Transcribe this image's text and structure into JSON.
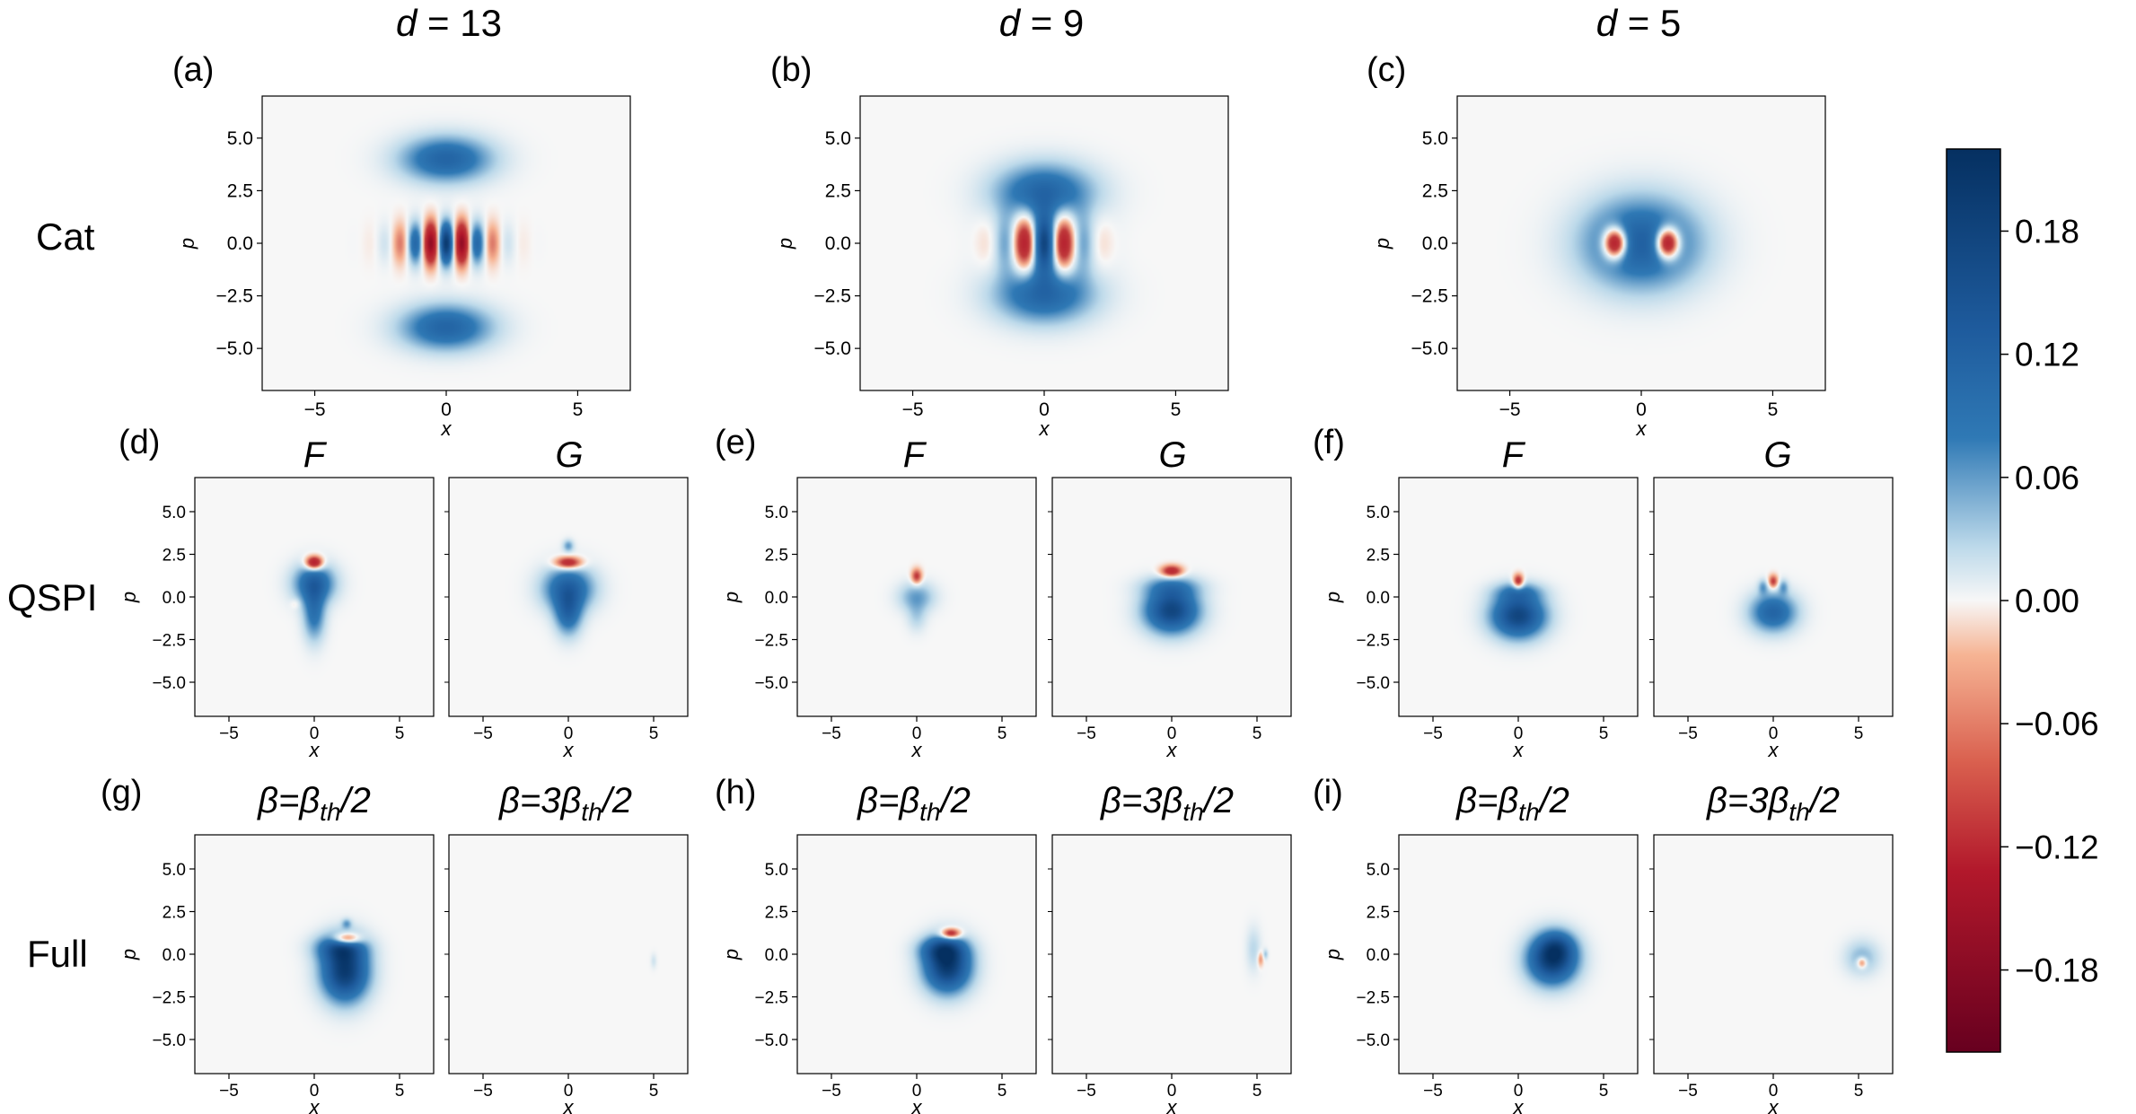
{
  "chart_data": {
    "type": "heatmap",
    "description_free": true,
    "column_titles": [
      {
        "var": "d",
        "eq": " = 13"
      },
      {
        "var": "d",
        "eq": " = 9"
      },
      {
        "var": "d",
        "eq": " = 5"
      }
    ],
    "row_labels": [
      "Cat",
      "QSPI",
      "Full"
    ],
    "panel_labels": [
      "(a)",
      "(b)",
      "(c)",
      "(d)",
      "(e)",
      "(f)",
      "(g)",
      "(h)",
      "(i)"
    ],
    "qspi_subtitles": [
      "F",
      "G"
    ],
    "full_subtitles": [
      {
        "pre": "β=β",
        "sub": "th",
        "post": "/2"
      },
      {
        "pre": "β=3β",
        "sub": "th",
        "post": "/2"
      }
    ],
    "xlabel": "x",
    "ylabel": "p",
    "x_ticks": [
      -5,
      0,
      5
    ],
    "x_tick_labels": [
      "−5",
      "0",
      "5"
    ],
    "y_ticks": [
      5.0,
      2.5,
      0.0,
      -2.5,
      -5.0
    ],
    "y_tick_labels": [
      "5.0",
      "2.5",
      "0.0",
      "−2.5",
      "−5.0"
    ],
    "xlim": [
      -7,
      7
    ],
    "ylim": [
      -7,
      7
    ],
    "colorbar": {
      "ticks": [
        0.18,
        0.12,
        0.06,
        0.0,
        -0.06,
        -0.12,
        -0.18
      ],
      "tick_labels": [
        "0.18",
        "0.12",
        "0.06",
        "0.00",
        "−0.06",
        "−0.12",
        "−0.18"
      ],
      "range": [
        -0.22,
        0.22
      ],
      "colors": {
        "max": "#053061",
        "mid_blue": "#2f79b5",
        "light_blue": "#bcd9ea",
        "zero": "#f7f7f7",
        "light_red": "#f6b494",
        "mid_red": "#c03a3b",
        "min": "#67001f"
      }
    },
    "panels": [
      {
        "id": "a",
        "blobs": [
          {
            "x": 0,
            "y": 4.0,
            "sx": 1.2,
            "sy": 0.75,
            "a": 0.12
          },
          {
            "x": 0,
            "y": -4.0,
            "sx": 1.2,
            "sy": 0.75,
            "a": 0.12
          },
          {
            "x": 0,
            "y": 0,
            "sx": 1.1,
            "sy": 0.7,
            "a": 0.2,
            "fringe_k": 5.2
          }
        ]
      },
      {
        "id": "b",
        "blobs": [
          {
            "x": 0,
            "y": 2.4,
            "sx": 1.3,
            "sy": 0.95,
            "a": 0.12
          },
          {
            "x": 0,
            "y": -2.4,
            "sx": 1.3,
            "sy": 0.95,
            "a": 0.12
          },
          {
            "x": 0,
            "y": 0,
            "sx": 1.0,
            "sy": 0.9,
            "a": 0.17,
            "fringe_k": 3.9
          }
        ]
      },
      {
        "id": "c",
        "blobs": [
          {
            "x": 0,
            "y": 0,
            "sx": 1.55,
            "sy": 1.5,
            "a": 0.13
          },
          {
            "x": -1.0,
            "y": 0,
            "sx": 0.3,
            "sy": 0.5,
            "a": -0.22
          },
          {
            "x": 1.0,
            "y": 0,
            "sx": 0.3,
            "sy": 0.5,
            "a": -0.22
          }
        ]
      },
      {
        "id": "d",
        "sub": "F",
        "blobs": [
          {
            "x": 0,
            "y": 0.8,
            "sx": 0.85,
            "sy": 0.8,
            "a": 0.12
          },
          {
            "x": 0,
            "y": -1.0,
            "sx": 0.45,
            "sy": 1.1,
            "a": 0.09
          },
          {
            "x": 0,
            "y": 2.0,
            "sx": 0.35,
            "sy": 0.28,
            "a": -0.16
          },
          {
            "x": -1.1,
            "y": -0.4,
            "sx": 0.2,
            "sy": 0.2,
            "a": -0.02
          }
        ]
      },
      {
        "id": "d",
        "sub": "G",
        "blobs": [
          {
            "x": 0,
            "y": 0.5,
            "sx": 1.05,
            "sy": 0.9,
            "a": 0.12
          },
          {
            "x": 0,
            "y": -1.0,
            "sx": 0.55,
            "sy": 0.9,
            "a": 0.1
          },
          {
            "x": 0,
            "y": 2.0,
            "sx": 0.55,
            "sy": 0.25,
            "a": -0.13
          },
          {
            "x": 0,
            "y": 3.0,
            "sx": 0.22,
            "sy": 0.25,
            "a": 0.06
          }
        ]
      },
      {
        "id": "e",
        "sub": "F",
        "blobs": [
          {
            "x": 0,
            "y": 0,
            "sx": 0.75,
            "sy": 0.6,
            "a": 0.06
          },
          {
            "x": 0,
            "y": -1.2,
            "sx": 0.4,
            "sy": 0.6,
            "a": 0.03
          },
          {
            "x": 0,
            "y": 1.2,
            "sx": 0.22,
            "sy": 0.32,
            "a": -0.09
          }
        ]
      },
      {
        "id": "e",
        "sub": "G",
        "blobs": [
          {
            "x": 0,
            "y": -0.8,
            "sx": 1.1,
            "sy": 0.9,
            "a": 0.18
          },
          {
            "x": 0,
            "y": 0.6,
            "sx": 1.2,
            "sy": 0.45,
            "a": 0.06
          },
          {
            "x": 0,
            "y": 1.5,
            "sx": 0.45,
            "sy": 0.25,
            "a": -0.12
          }
        ]
      },
      {
        "id": "f",
        "sub": "F",
        "blobs": [
          {
            "x": 0,
            "y": -1.1,
            "sx": 1.1,
            "sy": 0.9,
            "a": 0.18
          },
          {
            "x": 0,
            "y": 0.9,
            "sx": 0.22,
            "sy": 0.3,
            "a": -0.12
          },
          {
            "x": 0,
            "y": 0.3,
            "sx": 1.0,
            "sy": 0.4,
            "a": 0.06
          }
        ]
      },
      {
        "id": "f",
        "sub": "G",
        "blobs": [
          {
            "x": 0,
            "y": -0.9,
            "sx": 0.95,
            "sy": 0.8,
            "a": 0.12
          },
          {
            "x": 0,
            "y": 0.9,
            "sx": 0.2,
            "sy": 0.28,
            "a": -0.09
          },
          {
            "x": -0.6,
            "y": 0.6,
            "sx": 0.2,
            "sy": 0.3,
            "a": 0.05
          },
          {
            "x": 0.6,
            "y": 0.6,
            "sx": 0.2,
            "sy": 0.3,
            "a": 0.05
          }
        ]
      },
      {
        "id": "g",
        "sub": "half",
        "blobs": [
          {
            "x": 1.8,
            "y": -1.0,
            "sx": 0.95,
            "sy": 1.2,
            "a": 0.2
          },
          {
            "x": 1.5,
            "y": 0.4,
            "sx": 1.0,
            "sy": 0.55,
            "a": 0.1
          },
          {
            "x": 1.9,
            "y": 0.9,
            "sx": 0.55,
            "sy": 0.25,
            "a": -0.14
          },
          {
            "x": 1.9,
            "y": 1.8,
            "sx": 0.2,
            "sy": 0.2,
            "a": 0.05
          }
        ]
      },
      {
        "id": "g",
        "sub": "threehalf",
        "blobs": [
          {
            "x": 5.0,
            "y": -0.4,
            "sx": 0.12,
            "sy": 0.3,
            "a": 0.02
          }
        ]
      },
      {
        "id": "h",
        "sub": "half",
        "blobs": [
          {
            "x": 1.8,
            "y": -0.7,
            "sx": 0.95,
            "sy": 1.05,
            "a": 0.2
          },
          {
            "x": 1.5,
            "y": 0.3,
            "sx": 0.9,
            "sy": 0.5,
            "a": 0.1
          },
          {
            "x": 2.0,
            "y": 1.2,
            "sx": 0.4,
            "sy": 0.22,
            "a": -0.14
          }
        ]
      },
      {
        "id": "h",
        "sub": "threehalf",
        "blobs": [
          {
            "x": 4.8,
            "y": 0.3,
            "sx": 0.3,
            "sy": 0.9,
            "a": 0.03
          },
          {
            "x": 5.2,
            "y": -0.3,
            "sx": 0.12,
            "sy": 0.3,
            "a": -0.05
          },
          {
            "x": 5.5,
            "y": 0.0,
            "sx": 0.1,
            "sy": 0.2,
            "a": 0.04
          }
        ]
      },
      {
        "id": "i",
        "sub": "half",
        "blobs": [
          {
            "x": 2.0,
            "y": -0.3,
            "sx": 1.0,
            "sy": 1.0,
            "a": 0.2
          },
          {
            "x": 2.3,
            "y": 0.5,
            "sx": 0.7,
            "sy": 0.6,
            "a": 0.06
          }
        ]
      },
      {
        "id": "i",
        "sub": "threehalf",
        "blobs": [
          {
            "x": 5.2,
            "y": -0.2,
            "sx": 0.7,
            "sy": 0.7,
            "a": 0.05
          },
          {
            "x": 5.2,
            "y": -0.5,
            "sx": 0.2,
            "sy": 0.22,
            "a": -0.08
          }
        ]
      }
    ]
  }
}
